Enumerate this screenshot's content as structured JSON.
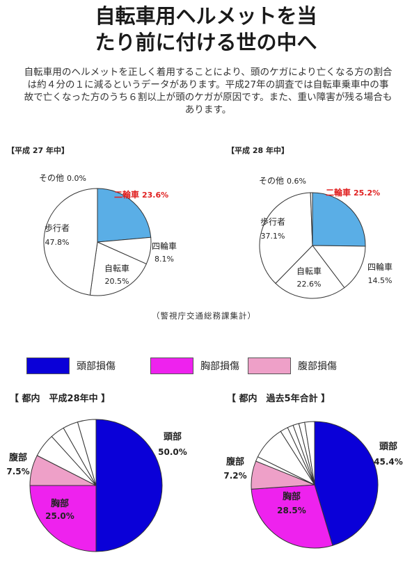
{
  "header": {
    "title_line1": "自転車用ヘルメットを当",
    "title_line2": "たり前に付ける世の中へ"
  },
  "intro": {
    "text": "自転車用のヘルメットを正しく着用することにより、頭のケガにより亡くなる方の割合は約４分の１に減るというデータがあります。平成27年の調査では自転車乗車中の事故で亡くなった方のうち６割以上が頭のケガが原因です。また、重い障害が残る場合もあります。"
  },
  "top_panel": {
    "caption": "（警視庁交通総務課集計）"
  },
  "legend": {
    "items": [
      {
        "label": "頭部損傷",
        "color": "#0a00d8"
      },
      {
        "label": "胸部損傷",
        "color": "#ee22ee"
      },
      {
        "label": "腹部損傷",
        "color": "#eea0c8"
      }
    ]
  },
  "chart_data": [
    {
      "type": "pie",
      "title": "【平成 27 年中】",
      "slices": [
        {
          "label": "二輪車",
          "value": 23.6,
          "value_text": "23.6%",
          "color": "#5aaee6",
          "highlight": true
        },
        {
          "label": "四輪車",
          "value": 8.1,
          "value_text": "8.1%",
          "color": "#ffffff"
        },
        {
          "label": "自転車",
          "value": 20.5,
          "value_text": "20.5%",
          "color": "#ffffff"
        },
        {
          "label": "歩行者",
          "value": 47.8,
          "value_text": "47.8%",
          "color": "#ffffff"
        },
        {
          "label": "その他",
          "value": 0.0,
          "value_text": "0.0%",
          "color": "#ffffff"
        }
      ]
    },
    {
      "type": "pie",
      "title": "【平成 28 年中】",
      "slices": [
        {
          "label": "二輪車",
          "value": 25.2,
          "value_text": "25.2%",
          "color": "#5aaee6",
          "highlight": true
        },
        {
          "label": "四輪車",
          "value": 14.5,
          "value_text": "14.5%",
          "color": "#ffffff"
        },
        {
          "label": "自転車",
          "value": 22.6,
          "value_text": "22.6%",
          "color": "#ffffff"
        },
        {
          "label": "歩行者",
          "value": 37.1,
          "value_text": "37.1%",
          "color": "#ffffff"
        },
        {
          "label": "その他",
          "value": 0.6,
          "value_text": "0.6%",
          "color": "#ffffff"
        }
      ]
    },
    {
      "type": "pie",
      "title": "【 都内　平成28年中 】",
      "slices": [
        {
          "label": "頭部",
          "value": 50.0,
          "value_text": "50.0%",
          "color": "#0a00d8"
        },
        {
          "label": "胸部",
          "value": 25.0,
          "value_text": "25.0%",
          "color": "#ee22ee"
        },
        {
          "label": "腹部",
          "value": 7.5,
          "value_text": "7.5%",
          "color": "#eea0c8"
        },
        {
          "label": "",
          "value": 5.8,
          "color": "#ffffff"
        },
        {
          "label": "",
          "value": 3.5,
          "color": "#ffffff"
        },
        {
          "label": "",
          "value": 3.7,
          "color": "#ffffff"
        },
        {
          "label": "",
          "value": 4.5,
          "color": "#ffffff"
        }
      ]
    },
    {
      "type": "pie",
      "title": "【 都内　過去5年合計 】",
      "slices": [
        {
          "label": "頭部",
          "value": 45.4,
          "value_text": "45.4%",
          "color": "#0a00d8"
        },
        {
          "label": "胸部",
          "value": 28.5,
          "value_text": "28.5%",
          "color": "#ee22ee"
        },
        {
          "label": "腹部",
          "value": 7.2,
          "value_text": "7.2%",
          "color": "#eea0c8"
        },
        {
          "label": "",
          "value": 1.2,
          "color": "#ffffff"
        },
        {
          "label": "",
          "value": 8.7,
          "color": "#ffffff"
        },
        {
          "label": "",
          "value": 2.0,
          "color": "#ffffff"
        },
        {
          "label": "",
          "value": 1.5,
          "color": "#ffffff"
        },
        {
          "label": "",
          "value": 1.5,
          "color": "#ffffff"
        },
        {
          "label": "",
          "value": 1.5,
          "color": "#ffffff"
        },
        {
          "label": "",
          "value": 2.5,
          "color": "#ffffff"
        }
      ]
    }
  ]
}
